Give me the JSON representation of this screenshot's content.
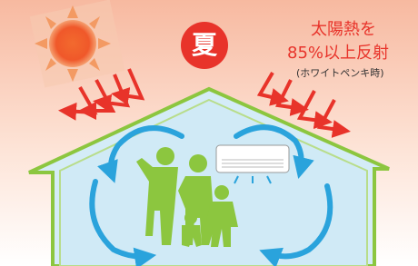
{
  "badge": "夏",
  "caption": {
    "line1": "太陽熱を",
    "line2": "85%以上反射",
    "note": "(ホワイトペンキ時)"
  }
}
